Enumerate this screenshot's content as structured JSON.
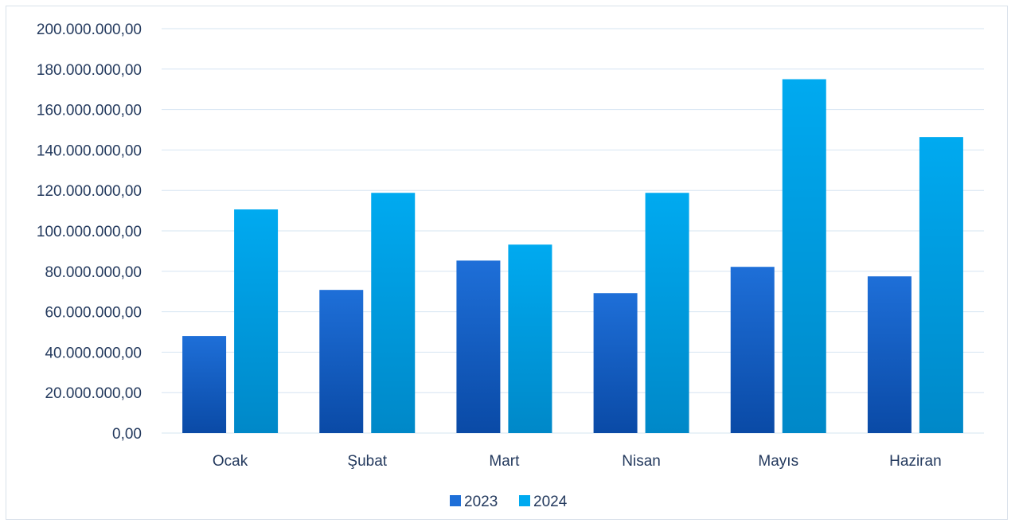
{
  "chart_data": {
    "type": "bar",
    "title": "",
    "xlabel": "",
    "ylabel": "",
    "categories": [
      "Ocak",
      "Şubat",
      "Mart",
      "Nisan",
      "Mayıs",
      "Haziran"
    ],
    "series": [
      {
        "name": "2023",
        "values": [
          48000000,
          70800000,
          85300000,
          69200000,
          82200000,
          77500000
        ]
      },
      {
        "name": "2024",
        "values": [
          110600000,
          118800000,
          93200000,
          118800000,
          175000000,
          146400000
        ]
      }
    ],
    "ylim": [
      0,
      200000000
    ],
    "yticks": [
      0,
      20000000,
      40000000,
      60000000,
      80000000,
      100000000,
      120000000,
      140000000,
      160000000,
      180000000,
      200000000
    ],
    "ytick_labels": [
      "0,00",
      "20.000.000,00",
      "40.000.000,00",
      "60.000.000,00",
      "80.000.000,00",
      "100.000.000,00",
      "120.000.000,00",
      "140.000.000,00",
      "160.000.000,00",
      "180.000.000,00",
      "200.000.000,00"
    ],
    "grid": true,
    "legend_position": "bottom",
    "colors": {
      "series_2023_top": "#1e6fd8",
      "series_2023_bottom": "#0a4aa6",
      "series_2024_top": "#00aaf0",
      "series_2024_bottom": "#0088c8",
      "grid": "#d6e4f2",
      "text": "#243a5e"
    }
  }
}
